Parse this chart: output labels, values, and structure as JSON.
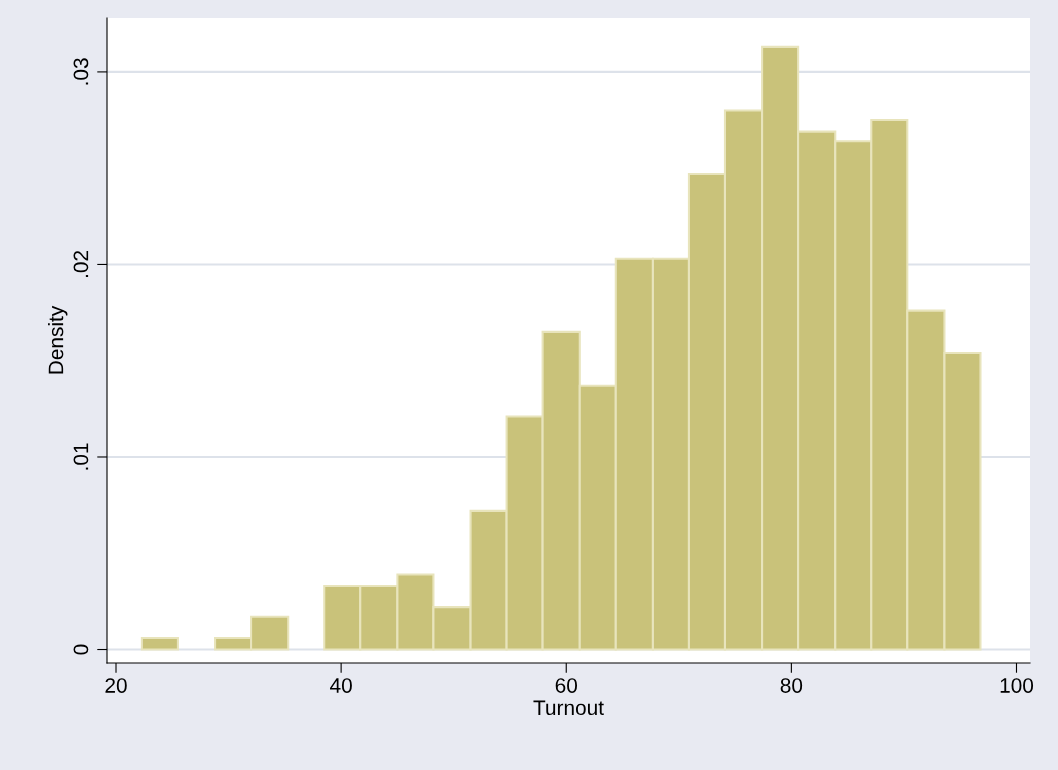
{
  "chart_data": {
    "type": "histogram",
    "xlabel": "Turnout",
    "ylabel": "Density",
    "bins": [
      22.3,
      25.5,
      28.8,
      32.0,
      35.3,
      38.5,
      41.7,
      45.0,
      48.2,
      51.5,
      54.7,
      57.9,
      61.2,
      64.4,
      67.7,
      70.9,
      74.1,
      77.4,
      80.6,
      83.9,
      87.1,
      90.3,
      93.6,
      96.8
    ],
    "values": [
      0.0006,
      0,
      0.0006,
      0.0017,
      0,
      0.0033,
      0.0033,
      0.0039,
      0.0022,
      0.0072,
      0.0121,
      0.0165,
      0.0137,
      0.0203,
      0.0203,
      0.0247,
      0.028,
      0.0313,
      0.0269,
      0.0264,
      0.0275,
      0.0176,
      0.0154
    ],
    "color": "#c9c27a",
    "xlim": [
      19.2,
      101.2
    ],
    "ylim": [
      -0.0007,
      0.0328
    ],
    "xticks": [
      20,
      40,
      60,
      80,
      100
    ],
    "yticks": [
      {
        "value": 0,
        "label": "0"
      },
      {
        "value": 0.01,
        "label": ".01"
      },
      {
        "value": 0.02,
        "label": ".02"
      },
      {
        "value": 0.03,
        "label": ".03"
      }
    ],
    "grid": "y",
    "legend": false
  }
}
